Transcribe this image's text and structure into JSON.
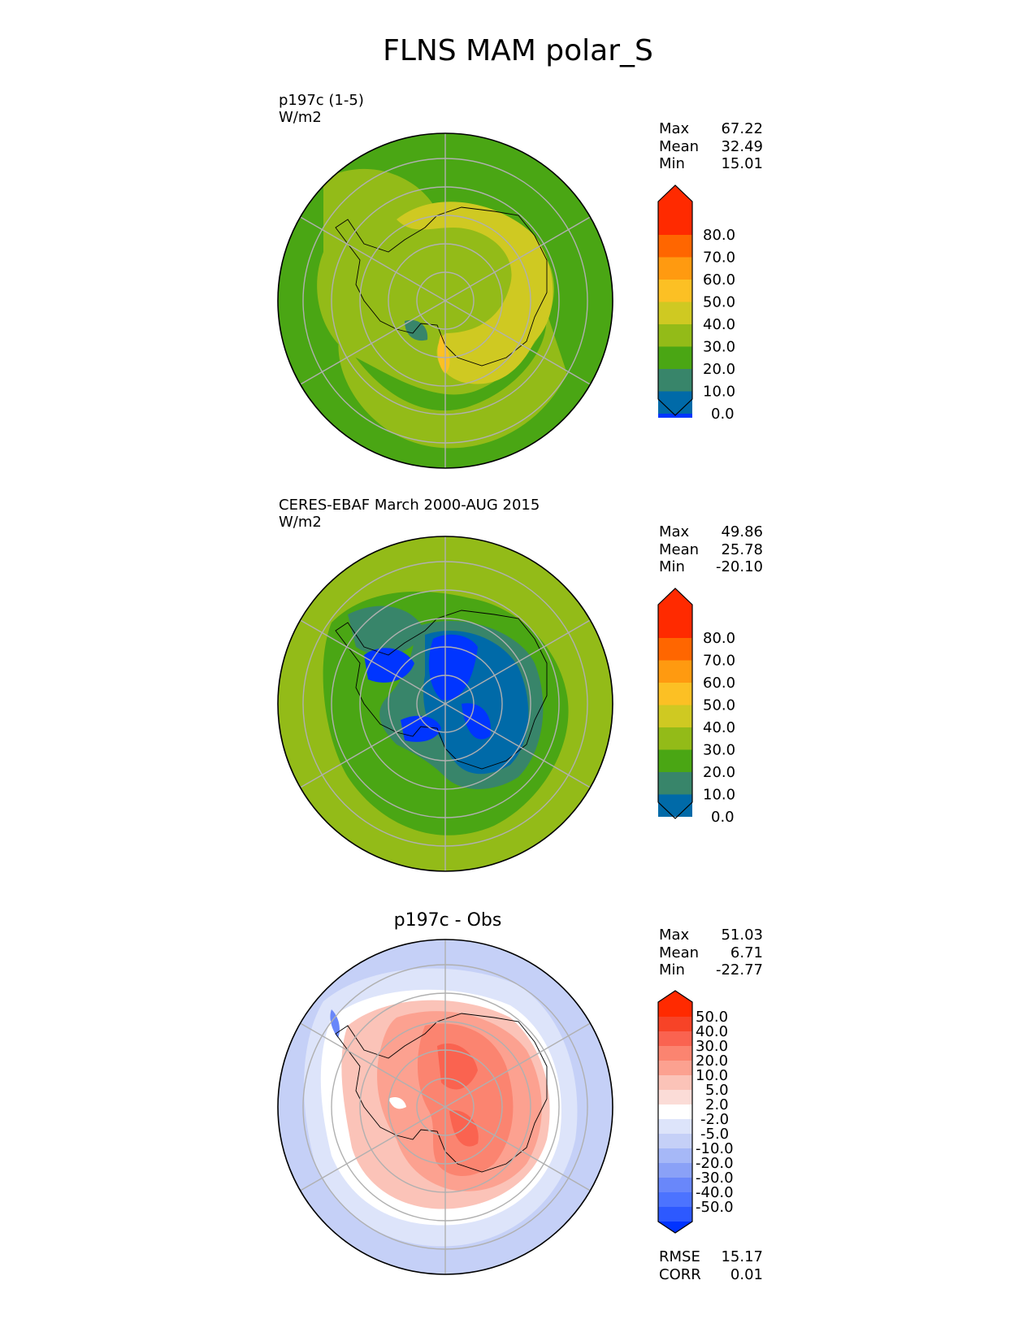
{
  "title": "FLNS MAM polar_S",
  "colors": {
    "abs_levels": [
      "#0035ff",
      "#006aa8",
      "#38856a",
      "#4aa614",
      "#93bb18",
      "#cfc922",
      "#fcc024",
      "#ff9a10",
      "#ff6600",
      "#ff2a00"
    ],
    "diff_levels": [
      "#0033ff",
      "#2d59ff",
      "#4c73ff",
      "#6987fa",
      "#8aa1f7",
      "#a6b8f7",
      "#c5d0f7",
      "#dde4fa",
      "#ffffff",
      "#fbdcd7",
      "#fbc3b8",
      "#fca190",
      "#fb8470",
      "#fa6350",
      "#f74327",
      "#ff2a00"
    ],
    "coastline": "#000000",
    "gridlines": "#b0b0b0"
  },
  "panels": [
    {
      "label_line1": "p197c (1-5)",
      "label_line2": "W/m2",
      "stats": {
        "max_label": "Max",
        "max": "67.22",
        "mean_label": "Mean",
        "mean": "32.49",
        "min_label": "Min",
        "min": "15.01"
      },
      "colorbar_ticks": [
        "80.0",
        "70.0",
        "60.0",
        "50.0",
        "40.0",
        "30.0",
        "20.0",
        "10.0",
        "0.0"
      ],
      "map_icon": "antarctic-polar-stereographic-map"
    },
    {
      "label_line1": "CERES-EBAF March 2000-AUG 2015",
      "label_line2": "W/m2",
      "stats": {
        "max_label": "Max",
        "max": "49.86",
        "mean_label": "Mean",
        "mean": "25.78",
        "min_label": "Min",
        "min": "-20.10"
      },
      "colorbar_ticks": [
        "80.0",
        "70.0",
        "60.0",
        "50.0",
        "40.0",
        "30.0",
        "20.0",
        "10.0",
        "0.0"
      ],
      "map_icon": "antarctic-polar-stereographic-map"
    },
    {
      "title": "p197c - Obs",
      "stats": {
        "max_label": "Max",
        "max": "51.03",
        "mean_label": "Mean",
        "mean": "6.71",
        "min_label": "Min",
        "min": "-22.77"
      },
      "colorbar_ticks": [
        "50.0",
        "40.0",
        "30.0",
        "20.0",
        "10.0",
        "5.0",
        "2.0",
        "-2.0",
        "-5.0",
        "-10.0",
        "-20.0",
        "-30.0",
        "-40.0",
        "-50.0"
      ],
      "metrics": {
        "rmse_label": "RMSE",
        "rmse": "15.17",
        "corr_label": "CORR",
        "corr": "0.01"
      },
      "map_icon": "antarctic-polar-stereographic-map"
    }
  ]
}
